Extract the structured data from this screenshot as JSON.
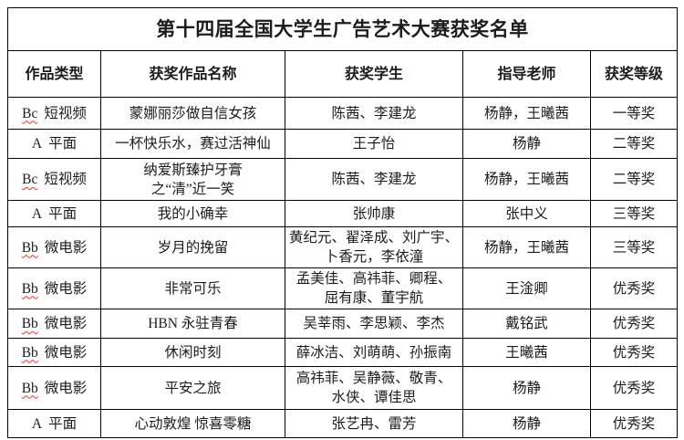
{
  "table": {
    "title": "第十四届全国大学生广告艺术大赛获奖名单",
    "columns": [
      "作品类型",
      "获奖作品名称",
      "获奖学生",
      "指导老师",
      "获奖等级"
    ],
    "rows": [
      {
        "type_code": "Bc",
        "type_label": "短视频",
        "misspelled": true,
        "work": "蒙娜丽莎做自信女孩",
        "students": "陈茜、李建龙",
        "teachers": "杨静，王曦茜",
        "award": "一等奖"
      },
      {
        "type_code": "A",
        "type_label": "平面",
        "misspelled": false,
        "work": "一杯快乐水，赛过活神仙",
        "students": "王子怡",
        "teachers": "杨静",
        "award": "二等奖"
      },
      {
        "type_code": "Bc",
        "type_label": "短视频",
        "misspelled": true,
        "work": "纳爱斯臻护牙膏\n之“清”近一笑",
        "students": "陈茜、李建龙",
        "teachers": "杨静，王曦茜",
        "award": "二等奖"
      },
      {
        "type_code": "A",
        "type_label": "平面",
        "misspelled": false,
        "work": "我的小确幸",
        "students": "张帅康",
        "teachers": "张中义",
        "award": "三等奖"
      },
      {
        "type_code": "Bb",
        "type_label": "微电影",
        "misspelled": true,
        "work": "岁月的挽留",
        "students": "黄纪元、翟泽成、刘广宇、\n卜香元，李依潼",
        "teachers": "杨静，王曦茜",
        "award": "三等奖"
      },
      {
        "type_code": "Bb",
        "type_label": "微电影",
        "misspelled": true,
        "work": "非常可乐",
        "students": "孟美佳、高祎菲、卿程、\n屈有康、董宇航",
        "teachers": "王淦卿",
        "award": "优秀奖"
      },
      {
        "type_code": "Bb",
        "type_label": "微电影",
        "misspelled": true,
        "work": "HBN 永驻青春",
        "students": "吴莘雨、李思颖、李杰",
        "teachers": "戴铭武",
        "award": "优秀奖"
      },
      {
        "type_code": "Bb",
        "type_label": "微电影",
        "misspelled": true,
        "work": "休闲时刻",
        "students": "薛冰洁、刘萌萌、孙振南",
        "teachers": "王曦茜",
        "award": "优秀奖"
      },
      {
        "type_code": "Bb",
        "type_label": "微电影",
        "misspelled": true,
        "work": "平安之旅",
        "students": "高祎菲、吴静薇、敬青、\n水侠、谭佳思",
        "teachers": "杨静",
        "award": "优秀奖"
      },
      {
        "type_code": "A",
        "type_label": "平面",
        "misspelled": false,
        "work": "心动敦煌 惊喜零糖",
        "students": "张艺冉、雷芳",
        "teachers": "杨静",
        "award": "优秀奖"
      }
    ]
  },
  "colors": {
    "text": "#1c1c1c",
    "border": "#000000",
    "background": "#ffffff",
    "spellcheck_underline": "#ff2a2a"
  }
}
